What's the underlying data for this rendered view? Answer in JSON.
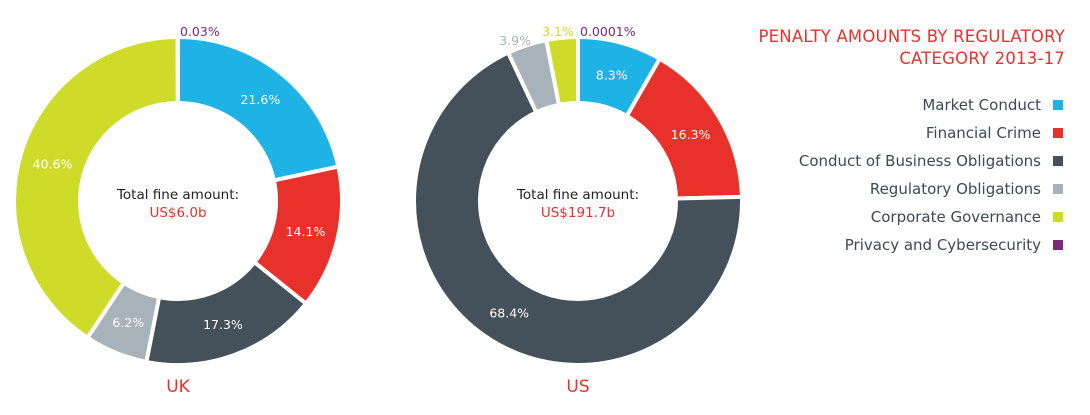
{
  "legend": {
    "title_line1": "PENALTY AMOUNTS BY REGULATORY",
    "title_line2": "CATEGORY 2013-17",
    "items": [
      {
        "label": "Market Conduct",
        "color": "#1fb3e5"
      },
      {
        "label": "Financial Crime",
        "color": "#e8312b"
      },
      {
        "label": "Conduct of Business Obligations",
        "color": "#44505a"
      },
      {
        "label": "Regulatory Obligations",
        "color": "#a8b2ba"
      },
      {
        "label": "Corporate Governance",
        "color": "#cedc29"
      },
      {
        "label": "Privacy and Cybersecurity",
        "color": "#7a2a78"
      }
    ]
  },
  "chart_data": [
    {
      "type": "pie",
      "title": "UK",
      "center_label": "Total fine amount:",
      "center_value": "US$6.0b",
      "categories": [
        "Market Conduct",
        "Financial Crime",
        "Conduct of Business Obligations",
        "Regulatory Obligations",
        "Corporate Governance",
        "Privacy and Cybersecurity"
      ],
      "values": [
        21.6,
        14.1,
        17.3,
        6.2,
        40.6,
        0.03
      ],
      "labels": [
        "21.6%",
        "14.1%",
        "17.3%",
        "6.2%",
        "40.6%",
        "0.03%"
      ]
    },
    {
      "type": "pie",
      "title": "US",
      "center_label": "Total fine amount:",
      "center_value": "US$191.7b",
      "categories": [
        "Market Conduct",
        "Financial Crime",
        "Conduct of Business Obligations",
        "Regulatory Obligations",
        "Corporate Governance",
        "Privacy and Cybersecurity"
      ],
      "values": [
        8.3,
        16.3,
        68.4,
        3.9,
        3.1,
        0.0001
      ],
      "labels": [
        "8.3%",
        "16.3%",
        "68.4%",
        "3.9%",
        "3.1%",
        "0.0001%"
      ]
    }
  ]
}
